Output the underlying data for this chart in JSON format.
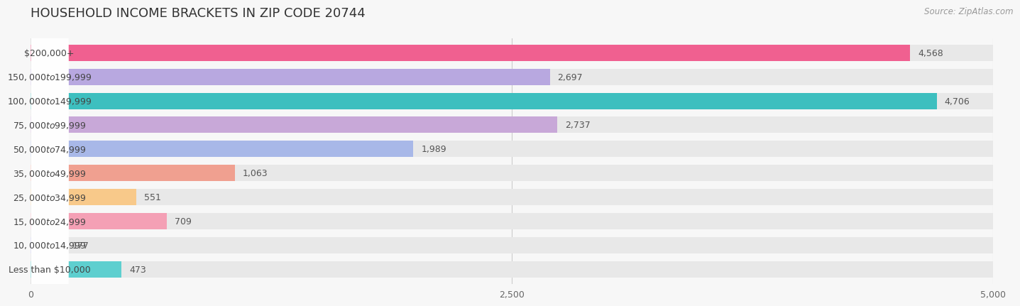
{
  "title": "HOUSEHOLD INCOME BRACKETS IN ZIP CODE 20744",
  "source": "Source: ZipAtlas.com",
  "categories": [
    "Less than $10,000",
    "$10,000 to $14,999",
    "$15,000 to $24,999",
    "$25,000 to $34,999",
    "$35,000 to $49,999",
    "$50,000 to $74,999",
    "$75,000 to $99,999",
    "$100,000 to $149,999",
    "$150,000 to $199,999",
    "$200,000+"
  ],
  "values": [
    473,
    177,
    709,
    551,
    1063,
    1989,
    2737,
    4706,
    2697,
    4568
  ],
  "bar_colors": [
    "#5ecfcf",
    "#b3b3e8",
    "#f4a0b5",
    "#f8c98a",
    "#f0a090",
    "#a8b8e8",
    "#c8a8d8",
    "#3dbfbf",
    "#b8a8e0",
    "#f06090"
  ],
  "xlim": [
    0,
    5000
  ],
  "xticks": [
    0,
    2500,
    5000
  ],
  "background_color": "#f7f7f7",
  "bar_bg_color": "#e8e8e8",
  "title_fontsize": 13,
  "label_fontsize": 9.0,
  "value_fontsize": 9.0
}
